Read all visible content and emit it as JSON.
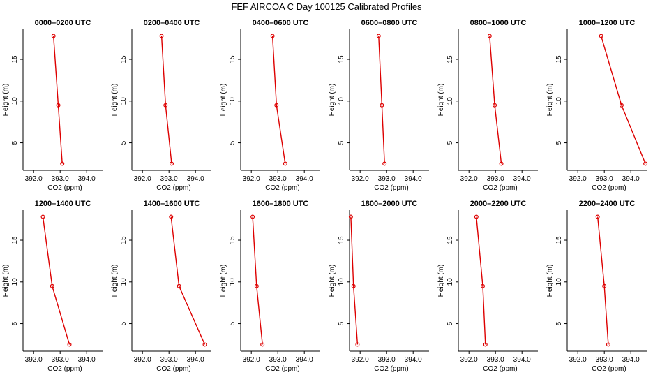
{
  "title": "FEF AIRCOA C  Day 100125  Calibrated Profiles",
  "style": {
    "line_color": "#dd0000",
    "point_color": "#dd0000",
    "axis_color": "#000000"
  },
  "chart_data": [
    {
      "type": "line",
      "title": "0000–0200 UTC",
      "xlabel": "CO2 (ppm)",
      "ylabel": "Height (m)",
      "xticks": [
        "392.0",
        "393.0",
        "394.0"
      ],
      "yticks": [
        "5",
        "10",
        "15"
      ],
      "xlim": [
        391.6,
        394.6
      ],
      "ylim": [
        1.7,
        18.6
      ],
      "points": [
        {
          "x": 392.75,
          "y": 17.8
        },
        {
          "x": 392.93,
          "y": 9.5
        },
        {
          "x": 393.08,
          "y": 2.5
        }
      ]
    },
    {
      "type": "line",
      "title": "0200–0400 UTC",
      "xlabel": "CO2 (ppm)",
      "ylabel": "Height (m)",
      "xticks": [
        "392.0",
        "393.0",
        "394.0"
      ],
      "yticks": [
        "5",
        "10",
        "15"
      ],
      "xlim": [
        391.6,
        394.6
      ],
      "ylim": [
        1.7,
        18.6
      ],
      "points": [
        {
          "x": 392.72,
          "y": 17.8
        },
        {
          "x": 392.87,
          "y": 9.5
        },
        {
          "x": 393.1,
          "y": 2.5
        }
      ]
    },
    {
      "type": "line",
      "title": "0400–0600 UTC",
      "xlabel": "CO2 (ppm)",
      "ylabel": "Height (m)",
      "xticks": [
        "392.0",
        "393.0",
        "394.0"
      ],
      "yticks": [
        "5",
        "10",
        "15"
      ],
      "xlim": [
        391.6,
        394.6
      ],
      "ylim": [
        1.7,
        18.6
      ],
      "points": [
        {
          "x": 392.8,
          "y": 17.8
        },
        {
          "x": 392.95,
          "y": 9.5
        },
        {
          "x": 393.28,
          "y": 2.5
        }
      ]
    },
    {
      "type": "line",
      "title": "0600–0800 UTC",
      "xlabel": "CO2 (ppm)",
      "ylabel": "Height (m)",
      "xticks": [
        "392.0",
        "393.0",
        "394.0"
      ],
      "yticks": [
        "5",
        "10",
        "15"
      ],
      "xlim": [
        391.6,
        394.6
      ],
      "ylim": [
        1.7,
        18.6
      ],
      "points": [
        {
          "x": 392.7,
          "y": 17.8
        },
        {
          "x": 392.82,
          "y": 9.5
        },
        {
          "x": 392.92,
          "y": 2.5
        }
      ]
    },
    {
      "type": "line",
      "title": "0800–1000 UTC",
      "xlabel": "CO2 (ppm)",
      "ylabel": "Height (m)",
      "xticks": [
        "392.0",
        "393.0",
        "394.0"
      ],
      "yticks": [
        "5",
        "10",
        "15"
      ],
      "xlim": [
        391.6,
        394.6
      ],
      "ylim": [
        1.7,
        18.6
      ],
      "points": [
        {
          "x": 392.78,
          "y": 17.8
        },
        {
          "x": 392.97,
          "y": 9.5
        },
        {
          "x": 393.22,
          "y": 2.5
        }
      ]
    },
    {
      "type": "line",
      "title": "1000–1200 UTC",
      "xlabel": "CO2 (ppm)",
      "ylabel": "Height (m)",
      "xticks": [
        "392.0",
        "393.0",
        "394.0"
      ],
      "yticks": [
        "5",
        "10",
        "15"
      ],
      "xlim": [
        391.6,
        394.6
      ],
      "ylim": [
        1.7,
        18.6
      ],
      "points": [
        {
          "x": 392.88,
          "y": 17.8
        },
        {
          "x": 393.65,
          "y": 9.5
        },
        {
          "x": 394.55,
          "y": 2.5
        }
      ]
    },
    {
      "type": "line",
      "title": "1200–1400 UTC",
      "xlabel": "CO2 (ppm)",
      "ylabel": "Height (m)",
      "xticks": [
        "392.0",
        "393.0",
        "394.0"
      ],
      "yticks": [
        "5",
        "10",
        "15"
      ],
      "xlim": [
        391.6,
        394.6
      ],
      "ylim": [
        1.7,
        18.6
      ],
      "points": [
        {
          "x": 392.35,
          "y": 17.8
        },
        {
          "x": 392.7,
          "y": 9.5
        },
        {
          "x": 393.35,
          "y": 2.5
        }
      ]
    },
    {
      "type": "line",
      "title": "1400–1600 UTC",
      "xlabel": "CO2 (ppm)",
      "ylabel": "Height (m)",
      "xticks": [
        "392.0",
        "393.0",
        "394.0"
      ],
      "yticks": [
        "5",
        "10",
        "15"
      ],
      "xlim": [
        391.6,
        394.6
      ],
      "ylim": [
        1.7,
        18.6
      ],
      "points": [
        {
          "x": 393.08,
          "y": 17.8
        },
        {
          "x": 393.38,
          "y": 9.5
        },
        {
          "x": 394.35,
          "y": 2.5
        }
      ]
    },
    {
      "type": "line",
      "title": "1600–1800 UTC",
      "xlabel": "CO2 (ppm)",
      "ylabel": "Height (m)",
      "xticks": [
        "392.0",
        "393.0",
        "394.0"
      ],
      "yticks": [
        "5",
        "10",
        "15"
      ],
      "xlim": [
        391.6,
        394.6
      ],
      "ylim": [
        1.7,
        18.6
      ],
      "points": [
        {
          "x": 392.05,
          "y": 17.8
        },
        {
          "x": 392.2,
          "y": 9.5
        },
        {
          "x": 392.42,
          "y": 2.5
        }
      ]
    },
    {
      "type": "line",
      "title": "1800–2000 UTC",
      "xlabel": "CO2 (ppm)",
      "ylabel": "Height (m)",
      "xticks": [
        "392.0",
        "393.0",
        "394.0"
      ],
      "yticks": [
        "5",
        "10",
        "15"
      ],
      "xlim": [
        391.6,
        394.6
      ],
      "ylim": [
        1.7,
        18.6
      ],
      "points": [
        {
          "x": 391.65,
          "y": 17.8
        },
        {
          "x": 391.75,
          "y": 9.5
        },
        {
          "x": 391.9,
          "y": 2.5
        }
      ]
    },
    {
      "type": "line",
      "title": "2000–2200 UTC",
      "xlabel": "CO2 (ppm)",
      "ylabel": "Height (m)",
      "xticks": [
        "392.0",
        "393.0",
        "394.0"
      ],
      "yticks": [
        "5",
        "10",
        "15"
      ],
      "xlim": [
        391.6,
        394.6
      ],
      "ylim": [
        1.7,
        18.6
      ],
      "points": [
        {
          "x": 392.28,
          "y": 17.8
        },
        {
          "x": 392.52,
          "y": 9.5
        },
        {
          "x": 392.62,
          "y": 2.5
        }
      ]
    },
    {
      "type": "line",
      "title": "2200–2400 UTC",
      "xlabel": "CO2 (ppm)",
      "ylabel": "Height (m)",
      "xticks": [
        "392.0",
        "393.0",
        "394.0"
      ],
      "yticks": [
        "5",
        "10",
        "15"
      ],
      "xlim": [
        391.6,
        394.6
      ],
      "ylim": [
        1.7,
        18.6
      ],
      "points": [
        {
          "x": 392.75,
          "y": 17.8
        },
        {
          "x": 393.0,
          "y": 9.5
        },
        {
          "x": 393.15,
          "y": 2.5
        }
      ]
    }
  ]
}
